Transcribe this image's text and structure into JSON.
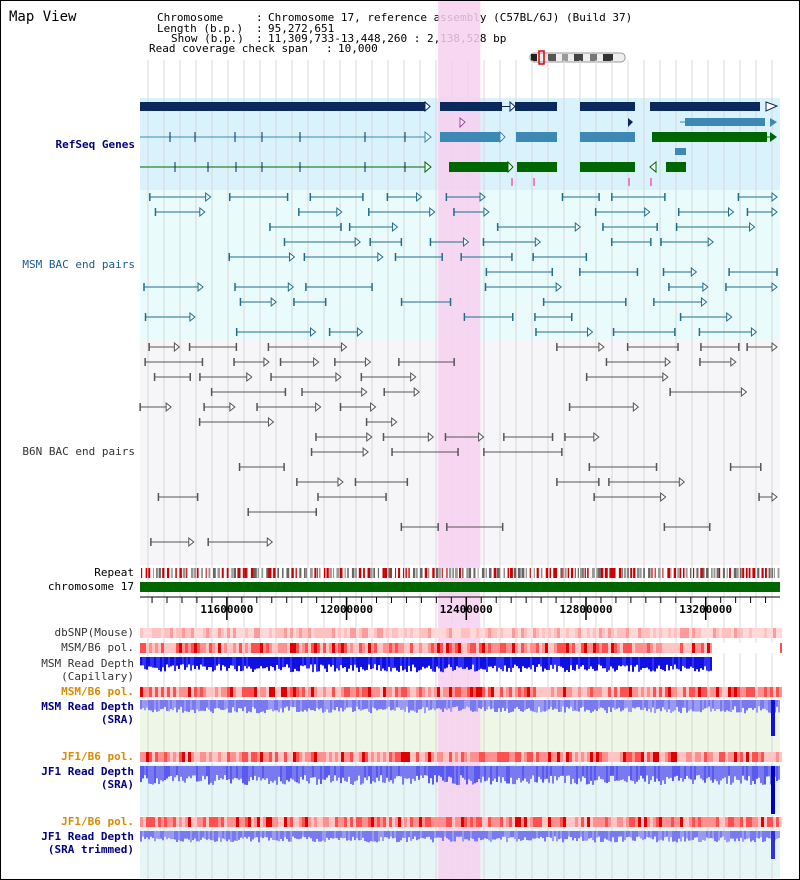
{
  "window": {
    "title": "Map View"
  },
  "info": {
    "chromosome_label": "Chromosome",
    "chromosome_value": "Chromosome 17, reference assembly (C57BL/6J) (Build 37)",
    "length_label": "Length (b.p.)",
    "length_value": "95,272,651",
    "show_label": "Show (b.p.)",
    "show_value": "11,309,733-13,448,260 : 2,138,528 bp",
    "span_label": "Read coverage check span",
    "span_value": "10,000"
  },
  "tracks": {
    "refseq": "RefSeq Genes",
    "msm_bac": "MSM BAC end pairs",
    "b6n_bac": "B6N BAC end pairs",
    "repeat": "Repeat",
    "chromosome": "chromosome 17",
    "dbsnp": "dbSNP(Mouse)",
    "msm_b6_pol_1": "MSM/B6 pol.",
    "msm_depth_cap_1": "MSM Read Depth",
    "msm_depth_cap_2": "(Capillary)",
    "msm_b6_pol_2": "MSM/B6 pol.",
    "msm_depth_sra_1": "MSM Read Depth",
    "msm_depth_sra_2": "(SRA)",
    "jf1_b6_pol_1": "JF1/B6 pol.",
    "jf1_depth_sra_1": "JF1 Read Depth",
    "jf1_depth_sra_2": "(SRA)",
    "jf1_b6_pol_2": "JF1/B6 pol.",
    "jf1_depth_trim_1": "JF1 Read Depth",
    "jf1_depth_trim_2": "(SRA trimmed)"
  },
  "axis": {
    "range_bp": [
      11309733,
      13448260
    ],
    "ticks": [
      {
        "value": 11600000,
        "label": "11600000"
      },
      {
        "value": 12000000,
        "label": "12000000"
      },
      {
        "value": 12400000,
        "label": "12400000"
      },
      {
        "value": 12800000,
        "label": "12800000"
      },
      {
        "value": 13200000,
        "label": "13200000"
      }
    ]
  },
  "highlight_region_bp": [
    12306000,
    12447000
  ],
  "colors": {
    "gene_dark": "#0a2a5e",
    "gene_mid": "#3b89b4",
    "gene_green": "#006600",
    "msm_line": "#1f6e8c",
    "b6n_line": "#555555",
    "highlight": "#f7d0f0",
    "refseq_bg": "#d9f2fb",
    "msm_bg": "#eafbfb",
    "b6n_bg": "#f6f6f8",
    "depth_blue": "#1010e0",
    "depth_light": "#7a7af0"
  }
}
